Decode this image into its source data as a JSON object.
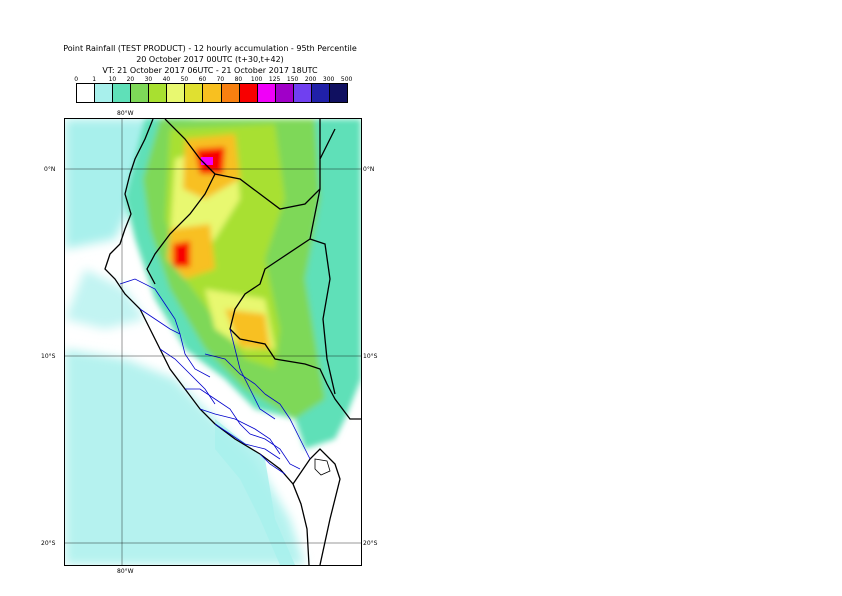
{
  "title": {
    "line1": "Point Rainfall (TEST PRODUCT) - 12 hourly accumulation - 95th Percentile",
    "line2": "20 October 2017 00UTC (t+30,t+42)",
    "line3": "VT: 21 October 2017 06UTC - 21 October 2017 18UTC"
  },
  "legend": {
    "ticks": [
      "0",
      "1",
      "10",
      "20",
      "30",
      "40",
      "50",
      "60",
      "70",
      "80",
      "100",
      "125",
      "150",
      "200",
      "300",
      "500"
    ],
    "colors": [
      "#ffffff",
      "#a8f0ec",
      "#5fe0b8",
      "#7ed858",
      "#a8e030",
      "#e8f870",
      "#e0e030",
      "#f8c020",
      "#f88010",
      "#f80000",
      "#f000f8",
      "#a000c8",
      "#7040f0",
      "#2020a8",
      "#101060"
    ]
  },
  "map": {
    "lon_labels_top": [
      "80°W"
    ],
    "lon_labels_bottom": [
      "80°W"
    ],
    "lat_labels_left": [
      "0°N",
      "10°S",
      "20°S"
    ],
    "lat_labels_right": [
      "0°N",
      "10°S",
      "20°S"
    ],
    "colors": {
      "ocean_light": "#a8f0ec",
      "medium": "#5fe0b8",
      "green": "#7ed858",
      "yellowgreen": "#a8e030",
      "yellow": "#e8f870",
      "orange": "#f8c020",
      "red": "#f80000",
      "magenta": "#f000f8",
      "border": "#000000",
      "region_border": "#0000cc"
    }
  }
}
